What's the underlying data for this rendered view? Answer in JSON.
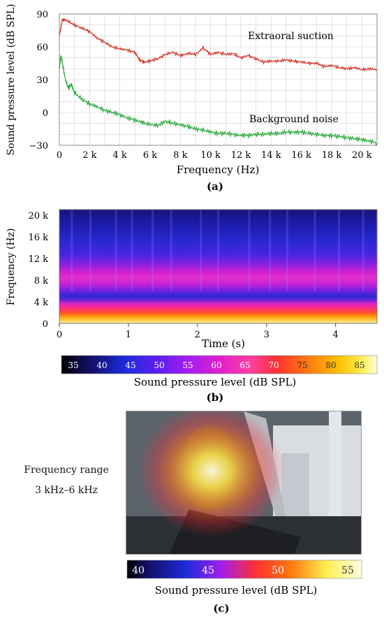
{
  "chart_data": [
    {
      "type": "line",
      "panel_label": "(a)",
      "xlabel": "Frequency (Hz)",
      "ylabel": "Sound pressure level (dB SPL)",
      "xlim": [
        0,
        21000
      ],
      "ylim": [
        -30,
        90
      ],
      "xticks": [
        "0",
        "2 k",
        "4 k",
        "6 k",
        "8 k",
        "10 k",
        "12 k",
        "14 k",
        "16 k",
        "18 k",
        "20 k"
      ],
      "yticks": [
        "90",
        "60",
        "30",
        "0",
        "−30"
      ],
      "grid": true,
      "series": [
        {
          "name": "Extraoral suction",
          "color": "#d62a1e",
          "x": [
            0,
            200,
            500,
            1000,
            1500,
            2000,
            2500,
            3000,
            3500,
            4000,
            4500,
            5000,
            5300,
            5600,
            6000,
            6500,
            7000,
            7500,
            8000,
            8500,
            9000,
            9500,
            10000,
            10500,
            11000,
            11500,
            12000,
            12500,
            13000,
            13500,
            14000,
            14500,
            15000,
            15500,
            16000,
            16500,
            17000,
            17500,
            18000,
            18500,
            19000,
            19500,
            20000,
            20500,
            21000
          ],
          "y": [
            70,
            85,
            84,
            80,
            77,
            74,
            68,
            64,
            60,
            58,
            57,
            55,
            48,
            46,
            47,
            49,
            53,
            55,
            52,
            54,
            53,
            59,
            53,
            55,
            53,
            54,
            50,
            52,
            49,
            46,
            47,
            47,
            48,
            47,
            46,
            45,
            45,
            42,
            43,
            41,
            40,
            41,
            39,
            40,
            39
          ]
        },
        {
          "name": "Background noise",
          "color": "#2aa83a",
          "x": [
            0,
            100,
            200,
            400,
            600,
            800,
            1000,
            1500,
            2000,
            2500,
            3000,
            3500,
            4000,
            4500,
            5000,
            5500,
            6000,
            6500,
            7000,
            7500,
            8000,
            8500,
            9000,
            9500,
            10000,
            10500,
            11000,
            11500,
            12000,
            12500,
            13000,
            13500,
            14000,
            14500,
            15000,
            15500,
            16000,
            16500,
            17000,
            17500,
            18000,
            18500,
            19000,
            19500,
            20000,
            20500,
            21000
          ],
          "y": [
            40,
            52,
            45,
            30,
            22,
            26,
            18,
            12,
            8,
            5,
            2,
            0,
            -2,
            -5,
            -7,
            -9,
            -11,
            -12,
            -8,
            -10,
            -11,
            -13,
            -15,
            -16,
            -18,
            -19,
            -19,
            -20,
            -21,
            -21,
            -20,
            -20,
            -19,
            -19,
            -18,
            -18,
            -18,
            -19,
            -20,
            -21,
            -21,
            -22,
            -23,
            -24,
            -25,
            -26,
            -28
          ]
        }
      ]
    },
    {
      "type": "heatmap",
      "panel_label": "(b)",
      "xlabel": "Time (s)",
      "ylabel": "Frequency (Hz)",
      "xlim": [
        0,
        4.6
      ],
      "ylim": [
        0,
        21000
      ],
      "xticks": [
        "0",
        "1",
        "2",
        "3",
        "4"
      ],
      "yticks": [
        "20 k",
        "16 k",
        "12 k",
        "8 k",
        "4 k",
        "0"
      ],
      "colorbar_label": "Sound pressure level (dB SPL)",
      "colorbar_ticks": [
        "35",
        "40",
        "45",
        "50",
        "55",
        "60",
        "65",
        "70",
        "75",
        "80",
        "85"
      ],
      "level_by_frequency_khz": [
        [
          0,
          85
        ],
        [
          2,
          78
        ],
        [
          3,
          70
        ],
        [
          4,
          60
        ],
        [
          5,
          57
        ],
        [
          6,
          52
        ],
        [
          8,
          58
        ],
        [
          9,
          62
        ],
        [
          10,
          57
        ],
        [
          12,
          52
        ],
        [
          14,
          50
        ],
        [
          16,
          47
        ],
        [
          18,
          45
        ],
        [
          20,
          44
        ],
        [
          21,
          43
        ]
      ]
    },
    {
      "type": "heatmap",
      "panel_label": "(c)",
      "frequency_range_title": "Frequency range",
      "frequency_range": "3 kHz–6 kHz",
      "colorbar_label": "Sound pressure level (dB SPL)",
      "colorbar_ticks": [
        "40",
        "45",
        "50",
        "55"
      ]
    }
  ],
  "colors": {
    "grid": "#cfcfcf",
    "colormap": [
      "#000000",
      "#141070",
      "#1c2bd8",
      "#5a1ef0",
      "#a11df0",
      "#e020d0",
      "#ff3fa0",
      "#ff3030",
      "#ff7a10",
      "#ffc000",
      "#ffee50",
      "#fffde0"
    ]
  }
}
